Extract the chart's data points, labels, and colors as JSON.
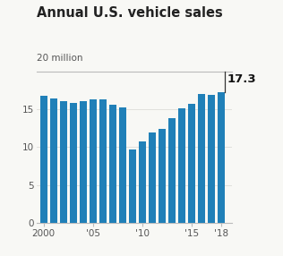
{
  "title": "Annual U.S. vehicle sales",
  "subtitle": "20 million",
  "annotation": "17.3",
  "years": [
    2000,
    2001,
    2002,
    2003,
    2004,
    2005,
    2006,
    2007,
    2008,
    2009,
    2010,
    2011,
    2012,
    2013,
    2014,
    2015,
    2016,
    2017,
    2018
  ],
  "values": [
    16.8,
    16.5,
    16.1,
    15.9,
    16.1,
    16.3,
    16.3,
    15.6,
    15.3,
    9.7,
    10.8,
    11.9,
    12.4,
    13.9,
    15.2,
    15.7,
    17.1,
    16.9,
    17.3
  ],
  "bar_color": "#2080b8",
  "bg_color": "#f8f8f5",
  "ylim": [
    0,
    20
  ],
  "yticks": [
    0,
    5,
    10,
    15
  ],
  "top_line_y": 20,
  "xtick_labels": [
    "2000",
    "'05",
    "'10",
    "'15",
    "'18"
  ],
  "xtick_positions": [
    2000,
    2005,
    2010,
    2015,
    2018
  ],
  "xlim_left": 1999.3,
  "xlim_right": 2019.1,
  "bar_width": 0.72,
  "title_fontsize": 10.5,
  "subtitle_fontsize": 7.5,
  "tick_fontsize": 7.5,
  "annot_fontsize": 9.5,
  "spine_color": "#bbbbbb",
  "tick_color": "#999999",
  "label_color": "#555555"
}
